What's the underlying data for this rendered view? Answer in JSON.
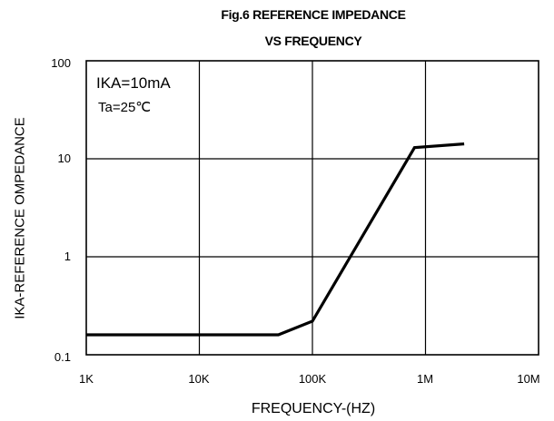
{
  "chart_data": {
    "type": "line",
    "title": "Fig.6  REFERENCE IMPEDANCE",
    "subtitle": "VS FREQUENCY",
    "xlabel": "FREQUENCY-(HZ)",
    "ylabel": "IKA-REFERENCE OMPEDANCE",
    "x_scale": "log",
    "y_scale": "log",
    "xlim": [
      1000,
      10000000
    ],
    "ylim": [
      0.1,
      100
    ],
    "x_ticks": [
      "1K",
      "10K",
      "100K",
      "1M",
      "10M"
    ],
    "y_ticks": [
      "100",
      "10",
      "1",
      "0.1"
    ],
    "grid": true,
    "annotations": [
      "IKA=10mA",
      "Ta=25℃"
    ],
    "series": [
      {
        "x": [
          1000,
          50000,
          100000,
          800000,
          2200000
        ],
        "y": [
          0.16,
          0.16,
          0.22,
          13,
          14.2
        ]
      }
    ]
  }
}
